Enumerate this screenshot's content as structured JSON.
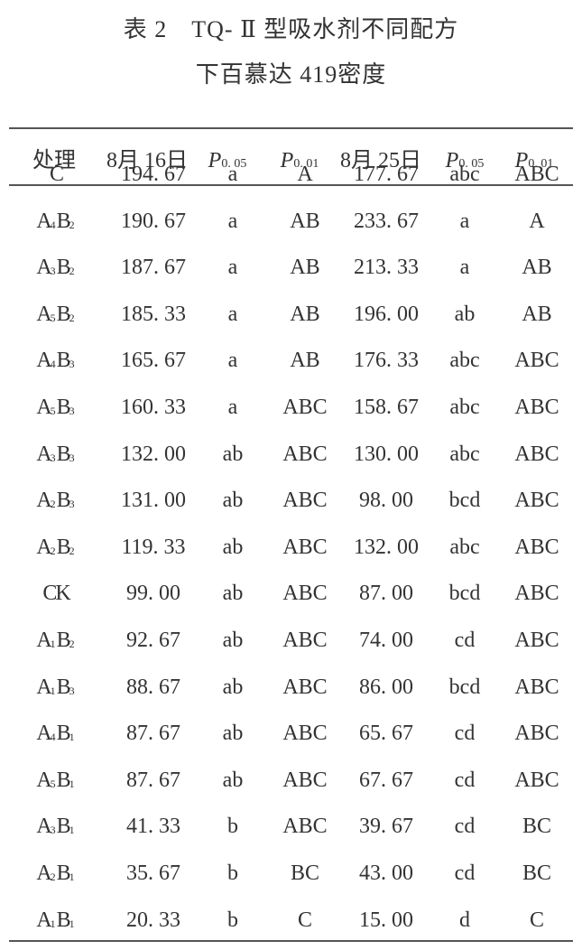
{
  "title": {
    "line1": "表 2　TQ- Ⅱ 型吸水剂不同配方",
    "line2": "下百慕达 419密度"
  },
  "header": {
    "treatment": "处理",
    "date1": "8月  16日",
    "p1": {
      "p": "P",
      "sub": "0. 05"
    },
    "p2": {
      "p": "P",
      "sub": "0. 01"
    },
    "date2": "8月  25日",
    "p3": {
      "p": "P",
      "sub": "0. 05"
    },
    "p4": {
      "p": "P",
      "sub": "0. 01"
    }
  },
  "rows": [
    {
      "t": [
        "C"
      ],
      "v1": "194. 67",
      "a1": "a",
      "b1": "A",
      "v2": "177. 67",
      "a2": "abc",
      "b2": "ABC"
    },
    {
      "t": [
        "A",
        "4",
        "B",
        "2"
      ],
      "v1": "190. 67",
      "a1": "a",
      "b1": "AB",
      "v2": "233. 67",
      "a2": "a",
      "b2": "A"
    },
    {
      "t": [
        "A",
        "3",
        "B",
        "2"
      ],
      "v1": "187. 67",
      "a1": "a",
      "b1": "AB",
      "v2": "213. 33",
      "a2": "a",
      "b2": "AB"
    },
    {
      "t": [
        "A",
        "5",
        "B",
        "2"
      ],
      "v1": "185. 33",
      "a1": "a",
      "b1": "AB",
      "v2": "196. 00",
      "a2": "ab",
      "b2": "AB"
    },
    {
      "t": [
        "A",
        "4",
        "B",
        "3"
      ],
      "v1": "165. 67",
      "a1": "a",
      "b1": "AB",
      "v2": "176. 33",
      "a2": "abc",
      "b2": "ABC"
    },
    {
      "t": [
        "A",
        "5",
        "B",
        "3"
      ],
      "v1": "160. 33",
      "a1": "a",
      "b1": "ABC",
      "v2": "158. 67",
      "a2": "abc",
      "b2": "ABC"
    },
    {
      "t": [
        "A",
        "3",
        "B",
        "3"
      ],
      "v1": "132. 00",
      "a1": "ab",
      "b1": "ABC",
      "v2": "130. 00",
      "a2": "abc",
      "b2": "ABC"
    },
    {
      "t": [
        "A",
        "2",
        "B",
        "3"
      ],
      "v1": "131. 00",
      "a1": "ab",
      "b1": "ABC",
      "v2": "98. 00",
      "a2": "bcd",
      "b2": "ABC"
    },
    {
      "t": [
        "A",
        "2",
        "B",
        "2"
      ],
      "v1": "119. 33",
      "a1": "ab",
      "b1": "ABC",
      "v2": "132. 00",
      "a2": "abc",
      "b2": "ABC"
    },
    {
      "t": [
        "CK"
      ],
      "v1": "99. 00",
      "a1": "ab",
      "b1": "ABC",
      "v2": "87. 00",
      "a2": "bcd",
      "b2": "ABC"
    },
    {
      "t": [
        "A",
        "1",
        "B",
        "2"
      ],
      "v1": "92. 67",
      "a1": "ab",
      "b1": "ABC",
      "v2": "74. 00",
      "a2": "cd",
      "b2": "ABC"
    },
    {
      "t": [
        "A",
        "1",
        "B",
        "3"
      ],
      "v1": "88. 67",
      "a1": "ab",
      "b1": "ABC",
      "v2": "86. 00",
      "a2": "bcd",
      "b2": "ABC"
    },
    {
      "t": [
        "A",
        "4",
        "B",
        "1"
      ],
      "v1": "87. 67",
      "a1": "ab",
      "b1": "ABC",
      "v2": "65. 67",
      "a2": "cd",
      "b2": "ABC"
    },
    {
      "t": [
        "A",
        "5",
        "B",
        "1"
      ],
      "v1": "87. 67",
      "a1": "ab",
      "b1": "ABC",
      "v2": "67. 67",
      "a2": "cd",
      "b2": "ABC"
    },
    {
      "t": [
        "A",
        "3",
        "B",
        "1"
      ],
      "v1": "41. 33",
      "a1": "b",
      "b1": "ABC",
      "v2": "39. 67",
      "a2": "cd",
      "b2": "BC"
    },
    {
      "t": [
        "A",
        "2",
        "B",
        "1"
      ],
      "v1": "35. 67",
      "a1": "b",
      "b1": "BC",
      "v2": "43. 00",
      "a2": "cd",
      "b2": "BC"
    },
    {
      "t": [
        "A",
        "1",
        "B",
        "1"
      ],
      "v1": "20. 33",
      "a1": "b",
      "b1": "C",
      "v2": "15. 00",
      "a2": "d",
      "b2": "C"
    }
  ]
}
